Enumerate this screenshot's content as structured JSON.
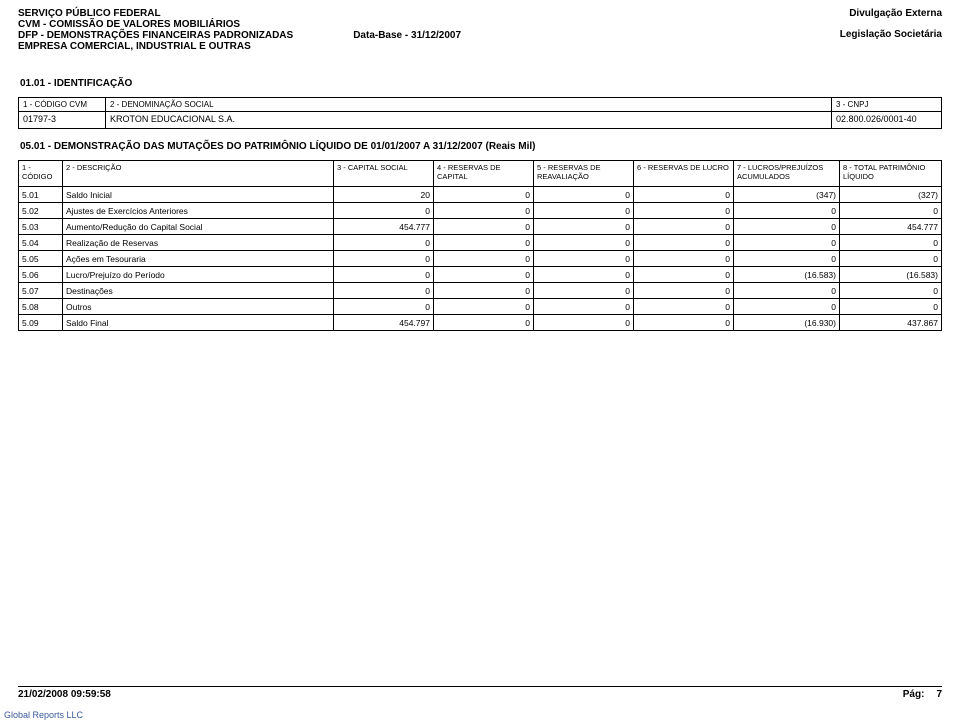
{
  "header": {
    "line1": "SERVIÇO PÚBLICO FEDERAL",
    "line2": "CVM - COMISSÃO DE VALORES MOBILIÁRIOS",
    "line3": "DFP - DEMONSTRAÇÕES FINANCEIRAS PADRONIZADAS",
    "line4": "EMPRESA COMERCIAL, INDUSTRIAL E OUTRAS",
    "database_label": "Data-Base - 31/12/2007",
    "right1": "Divulgação Externa",
    "right2": "Legislação Societária"
  },
  "section_id": {
    "title": "01.01 - IDENTIFICAÇÃO",
    "col1_label": "1 - CÓDIGO CVM",
    "col1_value": "01797-3",
    "col2_label": "2 - DENOMINAÇÃO SOCIAL",
    "col2_value": "KROTON EDUCACIONAL S.A.",
    "col3_label": "3 - CNPJ",
    "col3_value": "02.800.026/0001-40"
  },
  "section_mut": {
    "title": "05.01 - DEMONSTRAÇÃO DAS MUTAÇÕES DO PATRIMÔNIO LÍQUIDO DE 01/01/2007 A 31/12/2007 (Reais Mil)",
    "columns": [
      "1 - CÓDIGO",
      "2 - DESCRIÇÃO",
      "3 - CAPITAL SOCIAL",
      "4 - RESERVAS DE CAPITAL",
      "5 - RESERVAS DE REAVALIAÇÃO",
      "6 - RESERVAS DE LUCRO",
      "7 - LUCROS/PREJUÍZOS ACUMULADOS",
      "8 - TOTAL PATRIMÔNIO LÍQUIDO"
    ],
    "col_widths": [
      "44px",
      "auto",
      "100px",
      "100px",
      "100px",
      "100px",
      "106px",
      "102px"
    ],
    "rows": [
      {
        "code": "5.01",
        "desc": "Saldo Inicial",
        "v": [
          "20",
          "0",
          "0",
          "0",
          "(347)",
          "(327)"
        ]
      },
      {
        "code": "5.02",
        "desc": "Ajustes de Exercícios Anteriores",
        "v": [
          "0",
          "0",
          "0",
          "0",
          "0",
          "0"
        ]
      },
      {
        "code": "5.03",
        "desc": "Aumento/Redução do Capital Social",
        "v": [
          "454.777",
          "0",
          "0",
          "0",
          "0",
          "454.777"
        ]
      },
      {
        "code": "5.04",
        "desc": "Realização de Reservas",
        "v": [
          "0",
          "0",
          "0",
          "0",
          "0",
          "0"
        ]
      },
      {
        "code": "5.05",
        "desc": "Ações em Tesouraria",
        "v": [
          "0",
          "0",
          "0",
          "0",
          "0",
          "0"
        ]
      },
      {
        "code": "5.06",
        "desc": "Lucro/Prejuízo do Período",
        "v": [
          "0",
          "0",
          "0",
          "0",
          "(16.583)",
          "(16.583)"
        ]
      },
      {
        "code": "5.07",
        "desc": "Destinações",
        "v": [
          "0",
          "0",
          "0",
          "0",
          "0",
          "0"
        ]
      },
      {
        "code": "5.08",
        "desc": "Outros",
        "v": [
          "0",
          "0",
          "0",
          "0",
          "0",
          "0"
        ]
      },
      {
        "code": "5.09",
        "desc": "Saldo Final",
        "v": [
          "454.797",
          "0",
          "0",
          "0",
          "(16.930)",
          "437.867"
        ]
      }
    ]
  },
  "footer": {
    "timestamp": "21/02/2008 09:59:58",
    "page_label": "Pág:",
    "page_num": "7"
  },
  "global_line": "Global Reports LLC",
  "colors": {
    "text": "#000000",
    "link": "#3b5998",
    "border": "#000000",
    "background": "#ffffff"
  }
}
